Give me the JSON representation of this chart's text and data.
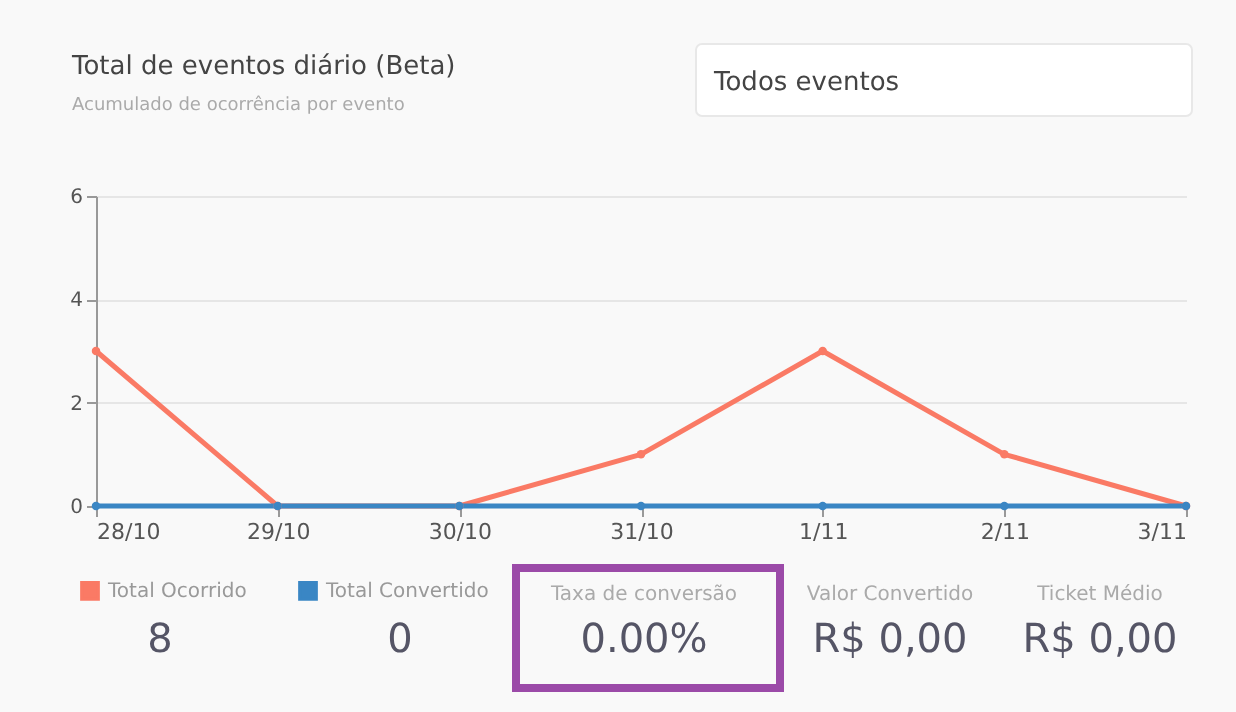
{
  "chart_data": {
    "type": "line",
    "title": "Total de eventos diário (Beta)",
    "subtitle": "Acumulado de ocorrência por evento",
    "categories": [
      "28/10",
      "29/10",
      "30/10",
      "31/10",
      "1/11",
      "2/11",
      "3/11"
    ],
    "series": [
      {
        "name": "Total Ocorrido",
        "color": "#fa7a65",
        "values": [
          3,
          0,
          0,
          1,
          3,
          1,
          0
        ]
      },
      {
        "name": "Total Convertido",
        "color": "#3a86c4",
        "values": [
          0,
          0,
          0,
          0,
          0,
          0,
          0
        ]
      }
    ],
    "ylim": [
      0,
      6
    ],
    "yticks": [
      0,
      2,
      4,
      6
    ],
    "grid": "y",
    "legend": "bottom left",
    "marker": "circle",
    "line_style": "solid",
    "annotations": [
      "Todos eventos",
      "8",
      "0",
      "Taxa de conversão",
      "0.00%",
      "Valor Convertido",
      "R$ 0,00",
      "Ticket Médio",
      "R$ 0,00"
    ]
  }
}
